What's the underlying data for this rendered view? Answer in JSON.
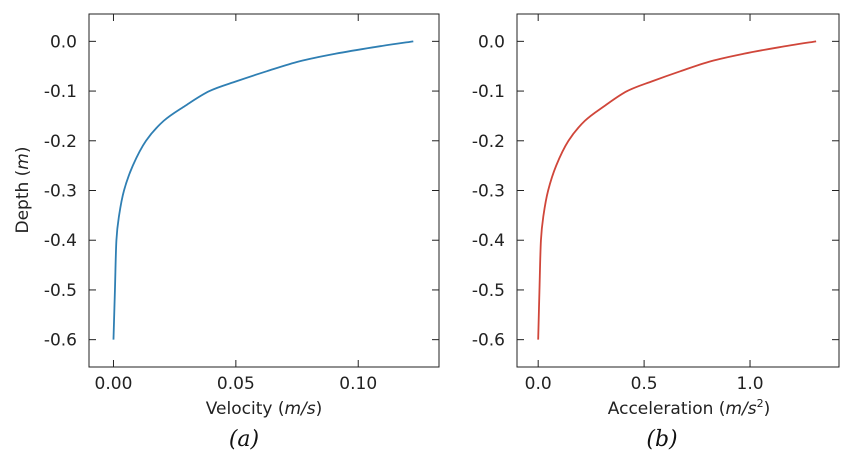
{
  "chart_data": [
    {
      "type": "line",
      "panel_label": "(a)",
      "xlabel_text": "Velocity (",
      "xlabel_unit": "m/s",
      "xlabel_close": ")",
      "ylabel_text": "Depth (",
      "ylabel_unit": "m",
      "ylabel_close": ")",
      "xlim": [
        -0.01,
        0.133
      ],
      "ylim": [
        -0.655,
        0.055
      ],
      "xticks": [
        0.0,
        0.05,
        0.1
      ],
      "xtick_labels": [
        "0.00",
        "0.05",
        "0.10"
      ],
      "yticks": [
        0.0,
        -0.1,
        -0.2,
        -0.3,
        -0.4,
        -0.5,
        -0.6
      ],
      "ytick_labels": [
        "0.0",
        "-0.1",
        "-0.2",
        "-0.3",
        "-0.4",
        "-0.5",
        "-0.6"
      ],
      "grid": false,
      "color": "#2f7fb3",
      "series": [
        {
          "x": [
            0.0,
            0.0006,
            0.0012,
            0.0023,
            0.0043,
            0.0079,
            0.0133,
            0.0205,
            0.0292,
            0.0392,
            0.0504,
            0.0627,
            0.0761,
            0.0906,
            0.1061,
            0.1225
          ],
          "y": [
            -0.6,
            -0.5,
            -0.4,
            -0.35,
            -0.3,
            -0.25,
            -0.2,
            -0.16,
            -0.13,
            -0.1,
            -0.08,
            -0.06,
            -0.04,
            -0.025,
            -0.012,
            0.0
          ]
        }
      ]
    },
    {
      "type": "line",
      "panel_label": "(b)",
      "xlabel_text": "Acceleration (",
      "xlabel_unit": "m/s",
      "xlabel_sup": "2",
      "xlabel_close": ")",
      "xlim": [
        -0.1,
        1.42
      ],
      "ylim": [
        -0.655,
        0.055
      ],
      "xticks": [
        0.0,
        0.5,
        1.0
      ],
      "xtick_labels": [
        "0.0",
        "0.5",
        "1.0"
      ],
      "yticks": [
        0.0,
        -0.1,
        -0.2,
        -0.3,
        -0.4,
        -0.5,
        -0.6
      ],
      "ytick_labels": [
        "0.0",
        "-0.1",
        "-0.2",
        "-0.3",
        "-0.4",
        "-0.5",
        "-0.6"
      ],
      "grid": false,
      "color": "#d0463a",
      "series": [
        {
          "x": [
            0.0,
            0.006,
            0.013,
            0.025,
            0.047,
            0.085,
            0.143,
            0.22,
            0.313,
            0.42,
            0.54,
            0.672,
            0.815,
            0.97,
            1.136,
            1.312
          ],
          "y": [
            -0.6,
            -0.5,
            -0.4,
            -0.35,
            -0.3,
            -0.25,
            -0.2,
            -0.16,
            -0.13,
            -0.1,
            -0.08,
            -0.06,
            -0.04,
            -0.025,
            -0.012,
            0.0
          ]
        }
      ]
    }
  ]
}
